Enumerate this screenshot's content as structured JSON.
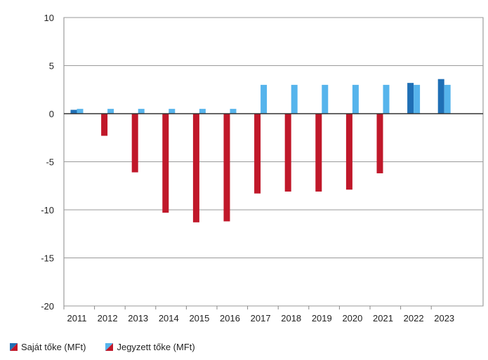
{
  "chart_data": {
    "type": "bar",
    "categories": [
      "2011",
      "2012",
      "2013",
      "2014",
      "2015",
      "2016",
      "2017",
      "2018",
      "2019",
      "2020",
      "2021",
      "2022",
      "2023"
    ],
    "series": [
      {
        "name": "Saját tőke (MFt)",
        "values": [
          0.4,
          -2.3,
          -6.1,
          -10.3,
          -11.3,
          -11.2,
          -8.3,
          -8.1,
          -8.1,
          -7.9,
          -6.2,
          3.2,
          3.6
        ],
        "color_positive": "#1f6fb5",
        "color_negative": "#c0182a"
      },
      {
        "name": "Jegyzett tőke (MFt)",
        "values": [
          0.5,
          0.5,
          0.5,
          0.5,
          0.5,
          0.5,
          3.0,
          3.0,
          3.0,
          3.0,
          3.0,
          3.0,
          3.0
        ],
        "color": "#56b4ec"
      }
    ],
    "ylim": [
      -20,
      10
    ],
    "yticks": [
      10,
      5,
      0,
      -5,
      -10,
      -15,
      -20
    ],
    "grid": "horizontal",
    "legend_position": "bottom-left",
    "title": "",
    "xlabel": "",
    "ylabel": ""
  }
}
